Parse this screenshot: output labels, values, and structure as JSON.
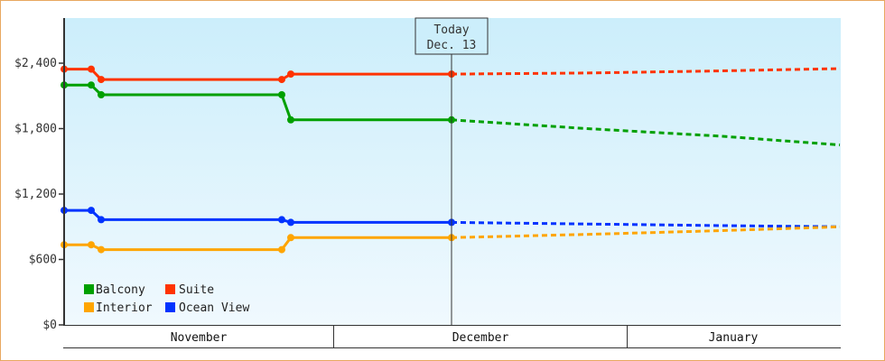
{
  "chart_data": {
    "type": "line",
    "title": "",
    "xlabel": "",
    "ylabel": "",
    "ylim": [
      0,
      2900
    ],
    "y_ticks": [
      "$0",
      "$600",
      "$1,200",
      "$1,800",
      "$2,400"
    ],
    "x_months": [
      "November",
      "December",
      "January"
    ],
    "today_marker": {
      "line1": "Today",
      "line2": "Dec. 13"
    },
    "legend": [
      {
        "name": "Balcony",
        "color": "#00a000"
      },
      {
        "name": "Suite",
        "color": "#ff3300"
      },
      {
        "name": "Interior",
        "color": "#ffa500"
      },
      {
        "name": "Ocean View",
        "color": "#0033ff"
      }
    ],
    "series": [
      {
        "name": "Suite",
        "color": "#ff3300",
        "actual": [
          [
            71,
            2345
          ],
          [
            101,
            2345
          ],
          [
            112,
            2250
          ],
          [
            312,
            2250
          ],
          [
            322,
            2300
          ],
          [
            500,
            2300
          ]
        ],
        "forecast": [
          [
            500,
            2300
          ],
          [
            650,
            2310
          ],
          [
            800,
            2330
          ],
          [
            930,
            2350
          ]
        ]
      },
      {
        "name": "Balcony",
        "color": "#00a000",
        "actual": [
          [
            71,
            2200
          ],
          [
            101,
            2200
          ],
          [
            112,
            2110
          ],
          [
            312,
            2110
          ],
          [
            322,
            1880
          ],
          [
            500,
            1880
          ]
        ],
        "forecast": [
          [
            500,
            1880
          ],
          [
            650,
            1800
          ],
          [
            800,
            1730
          ],
          [
            930,
            1650
          ]
        ]
      },
      {
        "name": "Ocean View",
        "color": "#0033ff",
        "actual": [
          [
            71,
            1050
          ],
          [
            101,
            1050
          ],
          [
            112,
            965
          ],
          [
            312,
            965
          ],
          [
            322,
            940
          ],
          [
            500,
            940
          ]
        ],
        "forecast": [
          [
            500,
            940
          ],
          [
            650,
            925
          ],
          [
            800,
            910
          ],
          [
            930,
            900
          ]
        ]
      },
      {
        "name": "Interior",
        "color": "#ffa500",
        "actual": [
          [
            71,
            735
          ],
          [
            101,
            735
          ],
          [
            112,
            690
          ],
          [
            312,
            690
          ],
          [
            322,
            800
          ],
          [
            500,
            800
          ]
        ],
        "forecast": [
          [
            500,
            800
          ],
          [
            650,
            830
          ],
          [
            800,
            865
          ],
          [
            930,
            900
          ]
        ]
      }
    ]
  }
}
